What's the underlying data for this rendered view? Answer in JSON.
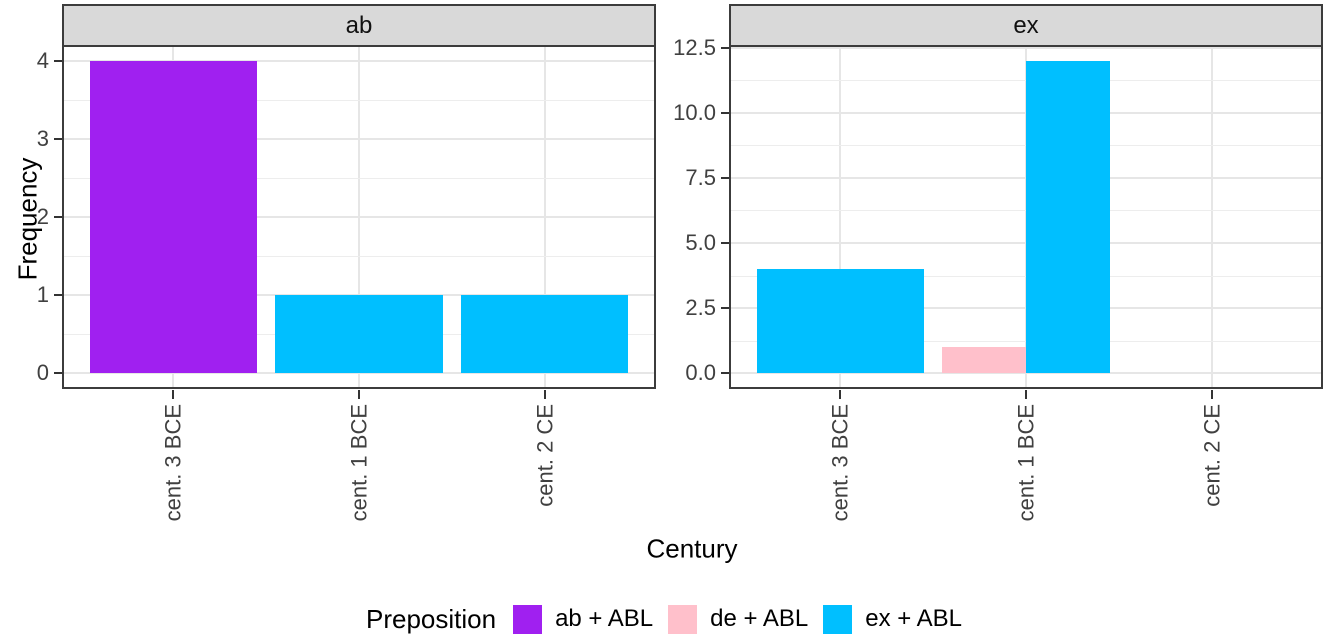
{
  "figure": {
    "ylabel": "Frequency",
    "xlabel": "Century",
    "legend": {
      "title": "Preposition",
      "entries": [
        {
          "key": "ab + ABL",
          "label": "ab + ABL",
          "color": "#A020F0"
        },
        {
          "key": "de + ABL",
          "label": "de + ABL",
          "color": "#FFC0CB"
        },
        {
          "key": "ex + ABL",
          "label": "ex + ABL",
          "color": "#00BFFF"
        }
      ]
    },
    "colors": {
      "strip_background": "#d9d9d9",
      "panel_border": "#3c3c3c",
      "grid_major": "#e6e6e6",
      "grid_minor": "#ededed",
      "axis_text": "#404040"
    }
  },
  "chart_data": {
    "type": "bar",
    "title": "",
    "xlabel": "Century",
    "ylabel": "Frequency",
    "grid": "on",
    "legend_position": "bottom",
    "legend_title": "Preposition",
    "categories": [
      "cent. 3 BCE",
      "cent. 1 BCE",
      "cent. 2 CE"
    ],
    "series_colors": {
      "ab + ABL": "#A020F0",
      "de + ABL": "#FFC0CB",
      "ex + ABL": "#00BFFF"
    },
    "facets": [
      {
        "label": "ab",
        "y_ticks": [
          "0",
          "1",
          "2",
          "3",
          "4"
        ],
        "ylim": [
          0,
          4
        ],
        "bars": [
          {
            "category": "cent. 3 BCE",
            "series": "ab + ABL",
            "value": 4
          },
          {
            "category": "cent. 1 BCE",
            "series": "ex + ABL",
            "value": 1
          },
          {
            "category": "cent. 2 CE",
            "series": "ex + ABL",
            "value": 1
          }
        ]
      },
      {
        "label": "ex",
        "y_ticks": [
          "0.0",
          "2.5",
          "5.0",
          "7.5",
          "10.0",
          "12.5"
        ],
        "ylim": [
          0,
          12.5
        ],
        "bars": [
          {
            "category": "cent. 3 BCE",
            "series": "ex + ABL",
            "value": 4
          },
          {
            "category": "cent. 1 BCE",
            "series": "de + ABL",
            "value": 1
          },
          {
            "category": "cent. 1 BCE",
            "series": "ex + ABL",
            "value": 12
          }
        ]
      }
    ]
  }
}
